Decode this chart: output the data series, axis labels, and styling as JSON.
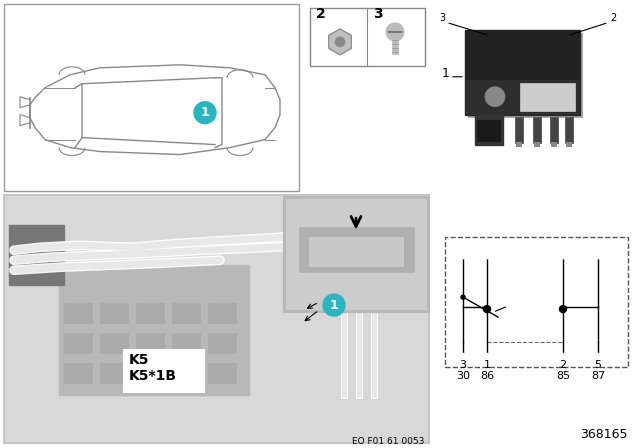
{
  "bg_color": "#ffffff",
  "fig_width": 6.4,
  "fig_height": 4.48,
  "dpi": 100,
  "circuit_pins": [
    "3",
    "1",
    "2",
    "5"
  ],
  "circuit_codes": [
    "30",
    "86",
    "85",
    "87"
  ],
  "bottom_code": "368165",
  "eo_code": "EO F01 61 0053",
  "k5_labels": [
    "K5",
    "K5*1B"
  ],
  "teal_color": "#2ab5c0",
  "line_color": "#888888",
  "dark_relay": "#2a2a2a",
  "photo_bg": "#c5c5c5",
  "photo_bg2": "#d8d8d8",
  "inset_bg": "#b8b8b8",
  "car_box_edge": "#999999",
  "parts_box_edge": "#888888",
  "circuit_edge": "#555555",
  "white": "#ffffff",
  "black": "#000000"
}
